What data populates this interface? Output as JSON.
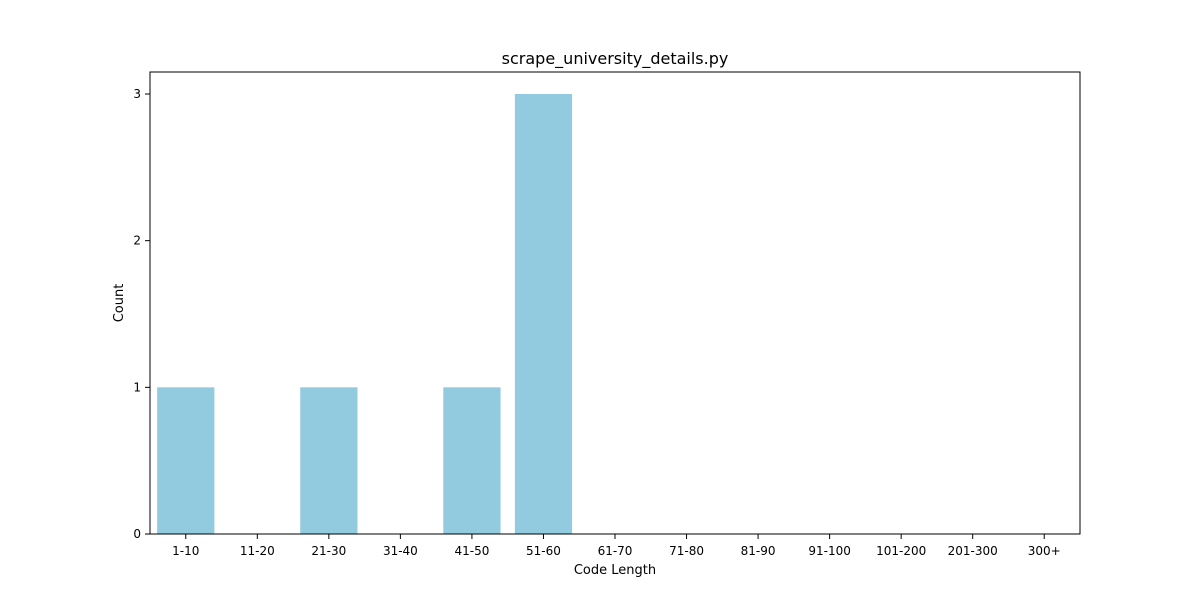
{
  "chart_data": {
    "type": "bar",
    "title": "scrape_university_details.py",
    "xlabel": "Code Length",
    "ylabel": "Count",
    "categories": [
      "1-10",
      "11-20",
      "21-30",
      "31-40",
      "41-50",
      "51-60",
      "61-70",
      "71-80",
      "81-90",
      "91-100",
      "101-200",
      "201-300",
      "300+"
    ],
    "values": [
      1,
      0,
      1,
      0,
      1,
      3,
      0,
      0,
      0,
      0,
      0,
      0,
      0
    ],
    "ylim": [
      0,
      3.15
    ],
    "yticks": [
      "0",
      "1",
      "2",
      "3"
    ],
    "bar_color": "#92cadf",
    "grid": false,
    "legend": "none"
  }
}
